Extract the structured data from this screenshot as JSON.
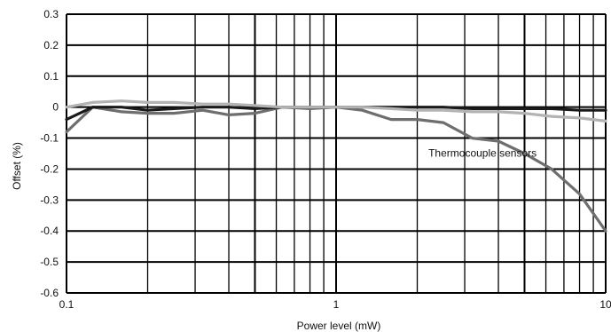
{
  "chart_data": {
    "type": "line",
    "title": "",
    "xlabel": "Power level (mW)",
    "ylabel": "Offset (%)",
    "xscale": "log",
    "xlim": [
      0.1,
      10
    ],
    "ylim": [
      -0.6,
      0.3
    ],
    "grid": true,
    "x_tick_labels": [
      "0.1",
      "1",
      "10"
    ],
    "y_tick_labels": [
      "0.3",
      "0.2",
      "0.1",
      "0",
      "-0.1",
      "-0.2",
      "-0.3",
      "-0.4",
      "-0.5",
      "-0.6"
    ],
    "annotations": [
      {
        "text": "Thermocouple sensors",
        "x": 2.2,
        "y": -0.16
      }
    ],
    "series": [
      {
        "color": "#6e6e6e",
        "x": [
          0.1,
          0.125,
          0.16,
          0.2,
          0.25,
          0.32,
          0.4,
          0.5,
          0.63,
          0.8,
          1,
          1.25,
          1.6,
          2,
          2.5,
          3.2,
          4,
          5,
          6.3,
          8,
          10
        ],
        "values": [
          -0.08,
          0.0,
          -0.015,
          -0.02,
          -0.02,
          -0.01,
          -0.025,
          -0.02,
          0.0,
          -0.005,
          0.0,
          -0.01,
          -0.04,
          -0.04,
          -0.05,
          -0.1,
          -0.11,
          -0.15,
          -0.2,
          -0.28,
          -0.4
        ]
      },
      {
        "color": "#1a1a1a",
        "x": [
          0.1,
          0.125,
          0.16,
          0.2,
          0.25,
          0.32,
          0.4,
          0.5,
          0.63,
          0.8,
          1,
          1.25,
          1.6,
          2,
          2.5,
          3.2,
          4,
          5,
          6.3,
          8,
          10
        ],
        "values": [
          -0.04,
          0.0,
          0.0,
          -0.01,
          -0.005,
          0.0,
          0.0,
          -0.005,
          0.0,
          0.0,
          0.0,
          0.0,
          0.0,
          0.0,
          0.0,
          -0.005,
          -0.005,
          -0.005,
          -0.005,
          -0.01,
          -0.01
        ]
      },
      {
        "color": "#b3b3b3",
        "x": [
          0.1,
          0.125,
          0.16,
          0.2,
          0.25,
          0.32,
          0.4,
          0.5,
          0.63,
          0.8,
          1,
          1.25,
          1.6,
          2,
          2.5,
          3.2,
          4,
          5,
          6.3,
          8,
          10
        ],
        "values": [
          0.0,
          0.015,
          0.02,
          0.015,
          0.015,
          0.01,
          0.01,
          0.005,
          0.0,
          0.0,
          0.0,
          0.0,
          -0.005,
          -0.01,
          -0.01,
          -0.015,
          -0.015,
          -0.02,
          -0.03,
          -0.035,
          -0.045
        ]
      }
    ]
  }
}
